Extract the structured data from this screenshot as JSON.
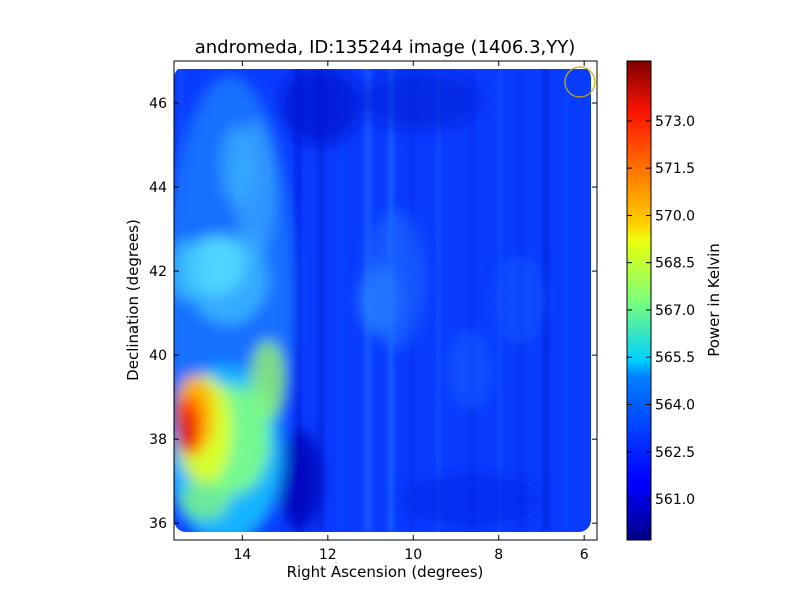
{
  "chart_data": {
    "type": "heatmap",
    "title": "andromeda, ID:135244 image (1406.3,YY)",
    "xlabel": "Right Ascension (degrees)",
    "ylabel": "Declination (degrees)",
    "colorbar_label": "Power in Kelvin",
    "colormap": "jet",
    "x_inverted": true,
    "xlim": [
      15.6,
      5.7
    ],
    "ylim": [
      35.6,
      47.0
    ],
    "x_ticks": [
      14,
      12,
      10,
      8,
      6
    ],
    "y_ticks": [
      36,
      38,
      40,
      42,
      44,
      46
    ],
    "colorbar_range": [
      559.7,
      574.9
    ],
    "colorbar_ticks": [
      "561.0",
      "562.5",
      "564.0",
      "565.5",
      "567.0",
      "568.5",
      "570.0",
      "571.5",
      "573.0"
    ],
    "value_features": {
      "background_kelvin": 561.8,
      "hot_spot": {
        "ra": 15.3,
        "dec": 38.2,
        "kelvin": 573.0
      },
      "warm_band_ra_range": [
        13.2,
        15.6
      ],
      "warm_band_dec_range": [
        36.6,
        39.6
      ],
      "secondary_warm_region": {
        "ra": 14.6,
        "dec": 41.5,
        "kelvin": 564.5
      }
    },
    "annotations": [
      {
        "type": "beam-circle",
        "ra": 6.1,
        "dec": 46.5,
        "color": "#c8b400"
      }
    ]
  }
}
